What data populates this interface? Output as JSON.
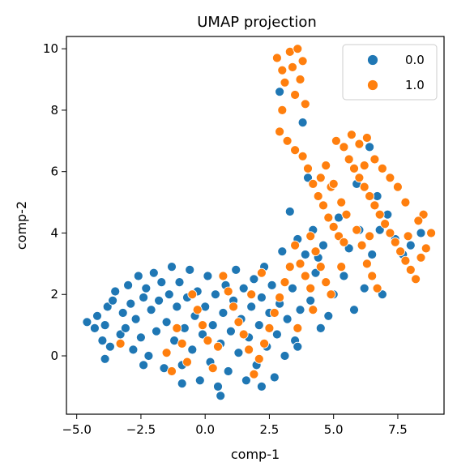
{
  "chart_data": {
    "type": "scatter",
    "title": "UMAP projection",
    "xlabel": "comp-1",
    "ylabel": "comp-2",
    "xlim": [
      -5.4,
      9.3
    ],
    "ylim": [
      -1.9,
      10.4
    ],
    "xticks": [
      -5.0,
      -2.5,
      0.0,
      2.5,
      5.0,
      7.5
    ],
    "xtick_labels": [
      "−5.0",
      "−2.5",
      "0.0",
      "2.5",
      "5.0",
      "7.5"
    ],
    "yticks": [
      0,
      2,
      4,
      6,
      8,
      10
    ],
    "ytick_labels": [
      "0",
      "2",
      "4",
      "6",
      "8",
      "10"
    ],
    "grid": false,
    "legend_position": "top-right",
    "series": [
      {
        "name": "0.0",
        "color": "#1f77b4",
        "points": [
          [
            -4.6,
            1.1
          ],
          [
            -4.3,
            0.9
          ],
          [
            -4.2,
            1.3
          ],
          [
            -4.0,
            0.5
          ],
          [
            -3.9,
            1.0
          ],
          [
            -3.8,
            1.6
          ],
          [
            -3.7,
            0.3
          ],
          [
            -3.6,
            1.8
          ],
          [
            -3.5,
            2.1
          ],
          [
            -3.3,
            0.7
          ],
          [
            -3.2,
            1.4
          ],
          [
            -3.1,
            0.9
          ],
          [
            -3.0,
            2.3
          ],
          [
            -2.9,
            1.7
          ],
          [
            -2.8,
            0.2
          ],
          [
            -2.7,
            1.2
          ],
          [
            -2.6,
            2.6
          ],
          [
            -2.5,
            0.6
          ],
          [
            -2.4,
            1.9
          ],
          [
            -2.3,
            2.2
          ],
          [
            -2.2,
            0.0
          ],
          [
            -2.1,
            1.5
          ],
          [
            -2.0,
            2.7
          ],
          [
            -1.9,
            0.8
          ],
          [
            -1.8,
            1.8
          ],
          [
            -1.7,
            2.4
          ],
          [
            -1.6,
            -0.4
          ],
          [
            -1.5,
            1.1
          ],
          [
            -1.4,
            2.0
          ],
          [
            -1.3,
            2.9
          ],
          [
            -1.2,
            0.5
          ],
          [
            -1.1,
            1.6
          ],
          [
            -1.0,
            2.4
          ],
          [
            -0.9,
            -0.3
          ],
          [
            -0.8,
            0.9
          ],
          [
            -0.7,
            1.9
          ],
          [
            -0.6,
            2.8
          ],
          [
            -0.5,
            0.2
          ],
          [
            -0.4,
            1.3
          ],
          [
            -0.3,
            2.1
          ],
          [
            -0.2,
            -0.8
          ],
          [
            -0.1,
            0.7
          ],
          [
            0.0,
            1.6
          ],
          [
            0.1,
            2.6
          ],
          [
            0.2,
            -0.2
          ],
          [
            0.3,
            1.0
          ],
          [
            0.4,
            2.0
          ],
          [
            0.5,
            -1.0
          ],
          [
            0.6,
            0.4
          ],
          [
            0.7,
            1.4
          ],
          [
            0.8,
            2.3
          ],
          [
            0.9,
            -0.5
          ],
          [
            1.0,
            0.8
          ],
          [
            1.1,
            1.8
          ],
          [
            1.2,
            2.8
          ],
          [
            1.3,
            0.1
          ],
          [
            1.4,
            1.2
          ],
          [
            1.5,
            2.2
          ],
          [
            1.6,
            -0.8
          ],
          [
            1.7,
            0.6
          ],
          [
            1.8,
            1.6
          ],
          [
            1.9,
            2.5
          ],
          [
            2.0,
            -0.3
          ],
          [
            2.1,
            1.0
          ],
          [
            2.2,
            1.9
          ],
          [
            2.3,
            2.9
          ],
          [
            2.4,
            0.3
          ],
          [
            2.5,
            1.4
          ],
          [
            2.6,
            2.3
          ],
          [
            2.7,
            -0.7
          ],
          [
            2.8,
            0.7
          ],
          [
            2.9,
            1.7
          ],
          [
            3.0,
            3.4
          ],
          [
            3.1,
            0.0
          ],
          [
            3.2,
            1.2
          ],
          [
            3.3,
            4.7
          ],
          [
            3.4,
            2.2
          ],
          [
            3.5,
            0.5
          ],
          [
            3.6,
            3.8
          ],
          [
            3.7,
            1.5
          ],
          [
            3.8,
            7.6
          ],
          [
            3.9,
            3.3
          ],
          [
            4.0,
            5.8
          ],
          [
            4.1,
            1.8
          ],
          [
            4.2,
            4.1
          ],
          [
            4.3,
            2.7
          ],
          [
            4.5,
            0.9
          ],
          [
            4.6,
            3.6
          ],
          [
            4.8,
            1.3
          ],
          [
            5.0,
            2.0
          ],
          [
            5.2,
            4.5
          ],
          [
            5.4,
            2.6
          ],
          [
            5.6,
            3.5
          ],
          [
            5.8,
            1.5
          ],
          [
            6.0,
            4.1
          ],
          [
            6.2,
            2.2
          ],
          [
            6.4,
            6.8
          ],
          [
            6.5,
            3.3
          ],
          [
            6.7,
            5.2
          ],
          [
            6.9,
            2.0
          ],
          [
            7.1,
            4.6
          ],
          [
            7.4,
            3.8
          ],
          [
            7.7,
            3.3
          ],
          [
            8.0,
            3.6
          ],
          [
            8.4,
            4.0
          ],
          [
            -3.9,
            -0.1
          ],
          [
            -2.4,
            -0.3
          ],
          [
            -0.9,
            -0.9
          ],
          [
            0.6,
            -1.3
          ],
          [
            2.2,
            -1.0
          ],
          [
            3.6,
            0.3
          ],
          [
            5.9,
            5.6
          ],
          [
            6.8,
            4.1
          ],
          [
            4.4,
            3.2
          ],
          [
            2.9,
            8.6
          ]
        ]
      },
      {
        "name": "1.0",
        "color": "#ff7f0e",
        "points": [
          [
            2.8,
            9.7
          ],
          [
            3.0,
            9.3
          ],
          [
            3.1,
            8.9
          ],
          [
            3.3,
            9.9
          ],
          [
            3.4,
            9.4
          ],
          [
            3.5,
            8.5
          ],
          [
            3.6,
            10.0
          ],
          [
            3.7,
            9.0
          ],
          [
            3.8,
            9.6
          ],
          [
            3.9,
            8.2
          ],
          [
            3.0,
            8.0
          ],
          [
            2.9,
            7.3
          ],
          [
            3.2,
            7.0
          ],
          [
            3.5,
            6.7
          ],
          [
            3.8,
            6.5
          ],
          [
            4.0,
            6.1
          ],
          [
            4.2,
            5.6
          ],
          [
            4.4,
            5.2
          ],
          [
            4.6,
            4.9
          ],
          [
            4.8,
            4.5
          ],
          [
            5.0,
            4.2
          ],
          [
            5.2,
            3.9
          ],
          [
            5.4,
            3.7
          ],
          [
            5.6,
            6.4
          ],
          [
            5.8,
            6.1
          ],
          [
            6.0,
            5.8
          ],
          [
            6.2,
            5.5
          ],
          [
            6.4,
            5.2
          ],
          [
            6.6,
            4.9
          ],
          [
            6.8,
            4.6
          ],
          [
            7.0,
            4.3
          ],
          [
            7.2,
            4.0
          ],
          [
            7.4,
            3.7
          ],
          [
            7.6,
            3.4
          ],
          [
            7.8,
            3.1
          ],
          [
            8.0,
            2.8
          ],
          [
            8.2,
            2.5
          ],
          [
            8.4,
            3.2
          ],
          [
            8.6,
            3.5
          ],
          [
            8.8,
            4.0
          ],
          [
            8.5,
            4.6
          ],
          [
            5.1,
            7.0
          ],
          [
            5.4,
            6.8
          ],
          [
            5.7,
            7.2
          ],
          [
            6.0,
            6.9
          ],
          [
            6.3,
            7.1
          ],
          [
            6.6,
            6.4
          ],
          [
            6.9,
            6.1
          ],
          [
            7.2,
            5.8
          ],
          [
            7.5,
            5.5
          ],
          [
            7.8,
            5.0
          ],
          [
            4.5,
            5.8
          ],
          [
            4.7,
            6.2
          ],
          [
            4.9,
            5.5
          ],
          [
            5.3,
            5.0
          ],
          [
            5.5,
            4.6
          ],
          [
            5.9,
            4.1
          ],
          [
            6.1,
            3.6
          ],
          [
            6.3,
            3.0
          ],
          [
            6.5,
            2.6
          ],
          [
            6.7,
            2.2
          ],
          [
            4.1,
            3.9
          ],
          [
            4.3,
            3.4
          ],
          [
            4.5,
            2.9
          ],
          [
            4.7,
            2.4
          ],
          [
            4.9,
            2.0
          ],
          [
            3.5,
            3.6
          ],
          [
            3.7,
            3.0
          ],
          [
            3.9,
            2.6
          ],
          [
            4.1,
            2.2
          ],
          [
            3.3,
            2.9
          ],
          [
            3.1,
            2.4
          ],
          [
            2.9,
            1.9
          ],
          [
            2.7,
            1.4
          ],
          [
            2.5,
            0.9
          ],
          [
            2.3,
            0.4
          ],
          [
            2.1,
            -0.1
          ],
          [
            1.9,
            -0.6
          ],
          [
            1.7,
            0.2
          ],
          [
            1.5,
            0.7
          ],
          [
            1.3,
            1.1
          ],
          [
            1.1,
            1.6
          ],
          [
            0.9,
            2.1
          ],
          [
            0.7,
            2.6
          ],
          [
            0.5,
            0.3
          ],
          [
            0.3,
            -0.4
          ],
          [
            0.1,
            0.5
          ],
          [
            -0.1,
            1.0
          ],
          [
            -0.3,
            1.5
          ],
          [
            -0.5,
            2.0
          ],
          [
            -0.7,
            -0.2
          ],
          [
            -0.9,
            0.4
          ],
          [
            -1.1,
            0.9
          ],
          [
            -1.3,
            -0.5
          ],
          [
            -1.5,
            0.1
          ],
          [
            -3.3,
            0.4
          ],
          [
            2.2,
            2.7
          ],
          [
            1.8,
            2.0
          ],
          [
            3.6,
            0.9
          ],
          [
            4.2,
            1.5
          ],
          [
            5.3,
            2.9
          ],
          [
            6.4,
            3.9
          ],
          [
            7.9,
            3.9
          ],
          [
            8.3,
            4.4
          ],
          [
            5.0,
            5.6
          ],
          [
            6.2,
            6.2
          ]
        ]
      }
    ]
  }
}
